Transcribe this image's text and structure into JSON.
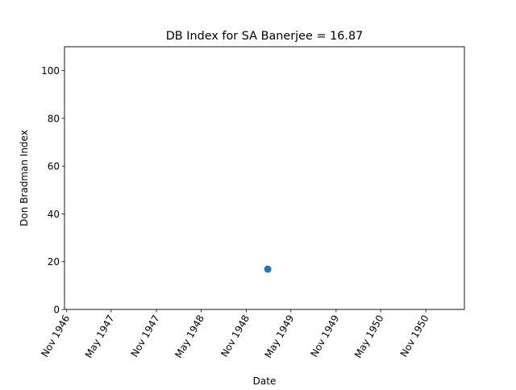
{
  "chart_data": {
    "type": "scatter",
    "title": "DB Index for SA Banerjee = 16.87",
    "xlabel": "Date",
    "ylabel": "Don Bradman Index",
    "xlim": [
      "1946-10-23",
      "1951-04-07"
    ],
    "ylim": [
      0,
      110
    ],
    "x_ticks": [
      {
        "date": "1946-11-01",
        "label": "Nov 1946"
      },
      {
        "date": "1947-05-01",
        "label": "May 1947"
      },
      {
        "date": "1947-11-01",
        "label": "Nov 1947"
      },
      {
        "date": "1948-05-01",
        "label": "May 1948"
      },
      {
        "date": "1948-11-01",
        "label": "Nov 1948"
      },
      {
        "date": "1949-05-01",
        "label": "May 1949"
      },
      {
        "date": "1949-11-01",
        "label": "Nov 1949"
      },
      {
        "date": "1950-05-01",
        "label": "May 1950"
      },
      {
        "date": "1950-11-01",
        "label": "Nov 1950"
      }
    ],
    "y_ticks": [
      0,
      20,
      40,
      60,
      80,
      100
    ],
    "grid": false,
    "series": [
      {
        "color": "#1f77b4",
        "points": [
          {
            "x": "1949-01-27",
            "y": 16.87
          }
        ]
      }
    ]
  }
}
